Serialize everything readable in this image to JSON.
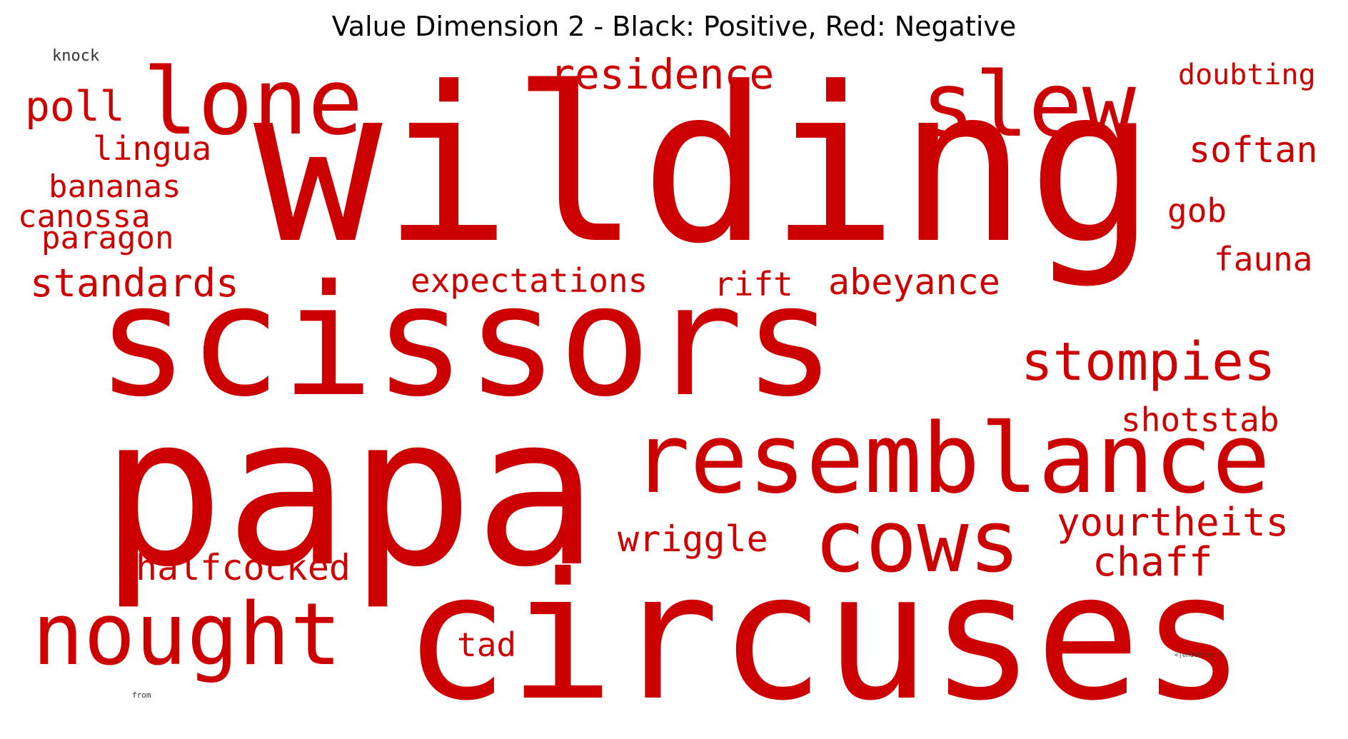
{
  "title": "Value Dimension 2 - Black: Positive, Red: Negative",
  "colors": {
    "positive": "#333333",
    "negative": "#cc0000"
  },
  "words": [
    {
      "text": "wilding",
      "sign": "negative"
    },
    {
      "text": "scissors",
      "sign": "negative"
    },
    {
      "text": "papa",
      "sign": "negative"
    },
    {
      "text": "circuses",
      "sign": "negative"
    },
    {
      "text": "resemblance",
      "sign": "negative"
    },
    {
      "text": "lone",
      "sign": "negative"
    },
    {
      "text": "slew",
      "sign": "negative"
    },
    {
      "text": "nought",
      "sign": "negative"
    },
    {
      "text": "cows",
      "sign": "negative"
    },
    {
      "text": "stompies",
      "sign": "negative"
    },
    {
      "text": "residence",
      "sign": "negative"
    },
    {
      "text": "yourtheits",
      "sign": "negative"
    },
    {
      "text": "standards",
      "sign": "negative"
    },
    {
      "text": "expectations",
      "sign": "negative"
    },
    {
      "text": "halfcocked",
      "sign": "negative"
    },
    {
      "text": "abeyance",
      "sign": "negative"
    },
    {
      "text": "shotstab",
      "sign": "negative"
    },
    {
      "text": "chaff",
      "sign": "negative"
    },
    {
      "text": "poll",
      "sign": "negative"
    },
    {
      "text": "softan",
      "sign": "negative"
    },
    {
      "text": "wriggle",
      "sign": "negative"
    },
    {
      "text": "doubting",
      "sign": "negative"
    },
    {
      "text": "lingua",
      "sign": "negative"
    },
    {
      "text": "bananas",
      "sign": "negative"
    },
    {
      "text": "canossa",
      "sign": "negative"
    },
    {
      "text": "paragon",
      "sign": "negative"
    },
    {
      "text": "fauna",
      "sign": "negative"
    },
    {
      "text": "rift",
      "sign": "negative"
    },
    {
      "text": "gob",
      "sign": "negative"
    },
    {
      "text": "tad",
      "sign": "negative"
    },
    {
      "text": "knock",
      "sign": "positive"
    },
    {
      "text": "<|endoftext|>",
      "sign": "positive"
    },
    {
      "text": "from",
      "sign": "positive"
    }
  ]
}
